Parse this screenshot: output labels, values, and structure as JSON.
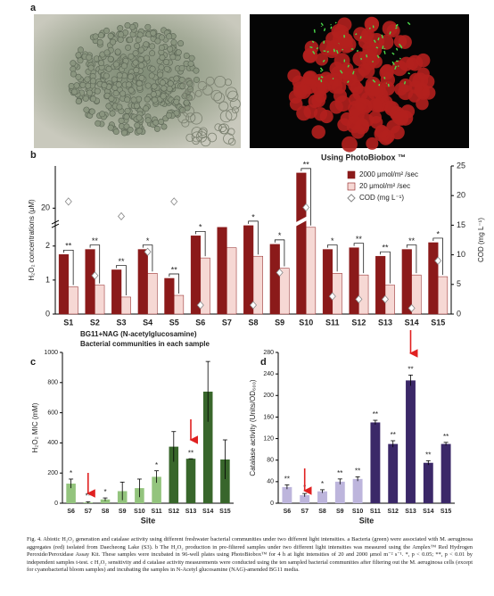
{
  "panels": [
    "a",
    "b",
    "c",
    "d"
  ],
  "chart_data": [
    {
      "type": "bar",
      "title": "Using PhotoBiobox ™",
      "ylabel": "H₂O₂ concentrations (μM)",
      "y2label": "COD (mg L⁻¹)",
      "categories": [
        "S1",
        "S2",
        "S3",
        "S4",
        "S5",
        "S6",
        "S7",
        "S8",
        "S9",
        "S10",
        "S11",
        "S12",
        "S13",
        "S14",
        "S15"
      ],
      "series": [
        {
          "name": "2000 μmol/m² /sec",
          "color": "#8b1a1a",
          "values": [
            1.75,
            1.9,
            1.3,
            1.9,
            1.05,
            2.3,
            2.55,
            2.6,
            2.05,
            22.5,
            1.9,
            1.95,
            1.7,
            1.9,
            2.1
          ]
        },
        {
          "name": "20 μmol/m² /sec",
          "color": "#f6d8d4",
          "values": [
            0.8,
            0.85,
            0.5,
            1.2,
            0.55,
            1.65,
            1.95,
            1.7,
            1.35,
            2.55,
            1.2,
            1.15,
            0.85,
            1.15,
            1.1
          ]
        },
        {
          "name": "COD (mg L⁻¹)",
          "type": "scatter",
          "marker": "diamond",
          "color": "#ffffff",
          "axis": "y2",
          "values": [
            19,
            6.5,
            16.5,
            10.5,
            19,
            1.5,
            null,
            1.5,
            7,
            18,
            3,
            2.5,
            2.5,
            1,
            9
          ]
        }
      ],
      "significance": [
        "**",
        "**",
        "**",
        "*",
        "**",
        "*",
        null,
        "*",
        "*",
        "**",
        "*",
        "**",
        "**",
        "**",
        "*"
      ],
      "ylim": [
        0,
        23
      ],
      "ybreak": [
        2.7,
        19
      ],
      "yticks": [
        0,
        1,
        2,
        20
      ],
      "y2lim": [
        0,
        25
      ],
      "y2ticks": [
        0,
        5,
        10,
        15,
        20,
        25
      ],
      "legend": "upper right"
    },
    {
      "type": "bar",
      "header": [
        "BG11+NAG (N-acetylglucosamine)",
        "Bacterial communities in each sample"
      ],
      "ylabel": "H₂O₂ MIC (mM)",
      "xlabel": "Site",
      "categories": [
        "S6",
        "S7",
        "S8",
        "S9",
        "S10",
        "S11",
        "S12",
        "S13",
        "S14",
        "S15"
      ],
      "values": [
        130,
        5,
        25,
        80,
        100,
        175,
        375,
        295,
        740,
        290
      ],
      "errors": [
        30,
        5,
        10,
        60,
        60,
        40,
        100,
        0,
        200,
        130
      ],
      "colors": [
        "#93c47d",
        "#93c47d",
        "#93c47d",
        "#93c47d",
        "#93c47d",
        "#93c47d",
        "#38662b",
        "#38662b",
        "#38662b",
        "#38662b"
      ],
      "significance": [
        "*",
        "**",
        "*",
        null,
        null,
        "*",
        null,
        "**",
        null,
        null
      ],
      "ylim": [
        0,
        1000
      ],
      "yticks": [
        0,
        200,
        400,
        600,
        800,
        1000
      ]
    },
    {
      "type": "bar",
      "ylabel": "Catalase activity (Units/OD₆₀₀)",
      "xlabel": "Site",
      "categories": [
        "S6",
        "S7",
        "S8",
        "S9",
        "S10",
        "S11",
        "S12",
        "S13",
        "S14",
        "S15"
      ],
      "values": [
        30,
        15,
        22,
        40,
        45,
        150,
        110,
        228,
        75,
        110
      ],
      "errors": [
        4,
        3,
        3,
        5,
        4,
        4,
        6,
        10,
        4,
        3
      ],
      "colors": [
        "#bdb5dc",
        "#bdb5dc",
        "#bdb5dc",
        "#bdb5dc",
        "#bdb5dc",
        "#3b2868",
        "#3b2868",
        "#3b2868",
        "#3b2868",
        "#3b2868"
      ],
      "significance": [
        "**",
        "*",
        "*",
        "**",
        "**",
        "**",
        "**",
        "**",
        "**",
        "**"
      ],
      "ylim": [
        0,
        280
      ],
      "yticks": [
        0,
        40,
        80,
        120,
        160,
        200,
        240,
        280
      ]
    }
  ],
  "caption": "Fig. 4. Abiotic H₂O₂ generation and catalase activity using different freshwater bacterial communities under two different light intensities. a Bacteria (green) were associated with M. aeruginosa aggregates (red) isolated from Daecheong Lake (S3). b The H₂O₂ production in pre-filtered samples under two different light intensities was measured using the Amplex™ Red Hydrogen Peroxide/Peroxidase Assay Kit. These samples were incubated in 96-well plates using PhotoBiobox™ for 4 h at light intensities of 20 and 2000 μmol m⁻² s⁻¹. *, p < 0.05; **, p < 0.01 by independent samples t-test. c H₂O₂ sensitivity and d catalase activity measurements were conducted using the ten sampled bacterial communities after filtering out the M. aeruginosa cells (except for cyanobacterial bloom samples) and incubating the samples in N-Acetyl glucosamine (NAG)-amended BG11 media."
}
